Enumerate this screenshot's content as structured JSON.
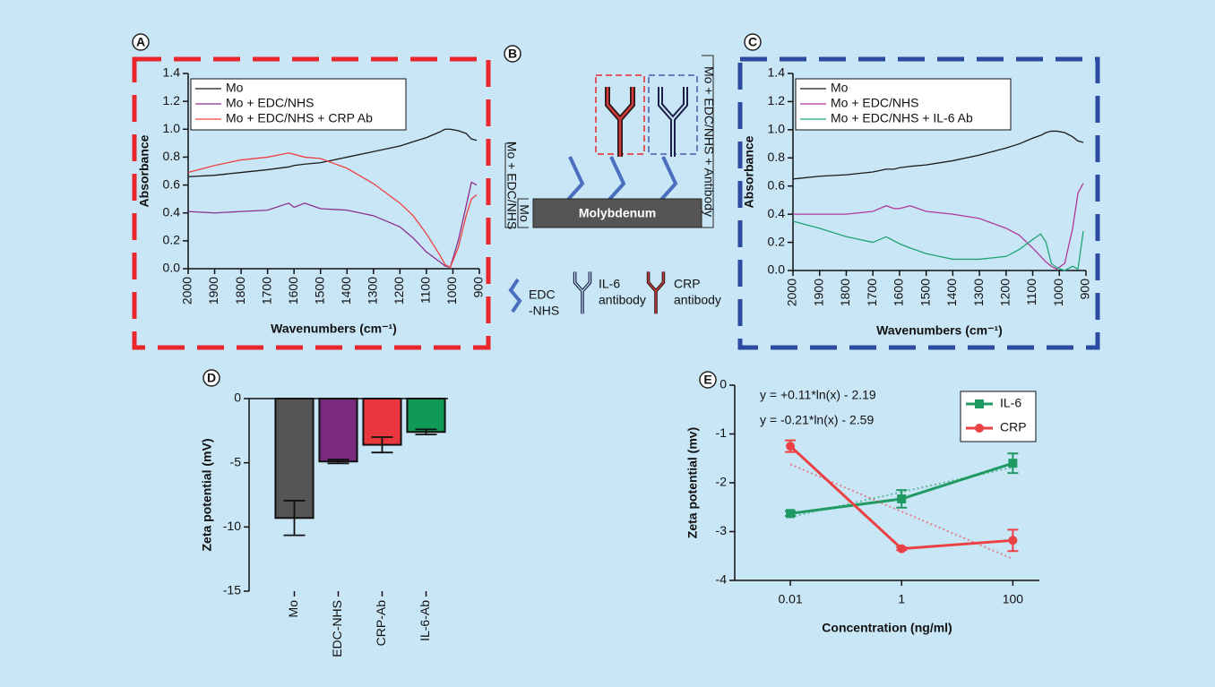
{
  "chart_data": [
    {
      "panel": "A",
      "type": "line",
      "xlabel": "Wavenumbers (cm⁻¹)",
      "ylabel": "Absorbance",
      "x": [
        2000,
        1900,
        1800,
        1700,
        1620,
        1600,
        1560,
        1500,
        1400,
        1300,
        1200,
        1150,
        1100,
        1050,
        1030,
        1010,
        980,
        950,
        930,
        910
      ],
      "xlim": [
        2000,
        900
      ],
      "xticks": [
        2000,
        1900,
        1800,
        1700,
        1600,
        1500,
        1400,
        1300,
        1200,
        1100,
        1000,
        900
      ],
      "ylim": [
        0,
        1.4
      ],
      "yticks": [
        {
          "value": 0,
          "label": "0.0"
        },
        0.2,
        0.4,
        0.6,
        0.8,
        {
          "value": 1,
          "label": "1.0"
        },
        1.2,
        1.4
      ],
      "frame_color": "#e8262b",
      "legend": "upper left",
      "series": [
        {
          "name": "Mo",
          "color": "#1a1a1a",
          "values": [
            0.66,
            0.67,
            0.69,
            0.71,
            0.73,
            0.74,
            0.75,
            0.76,
            0.8,
            0.84,
            0.88,
            0.91,
            0.94,
            0.98,
            1.0,
            1.0,
            0.99,
            0.97,
            0.93,
            0.92
          ]
        },
        {
          "name": "Mo + EDC/NHS",
          "color": "#8b2f8e",
          "values": [
            0.41,
            0.4,
            0.41,
            0.42,
            0.47,
            0.44,
            0.47,
            0.43,
            0.42,
            0.38,
            0.3,
            0.22,
            0.12,
            0.05,
            0.02,
            0.01,
            0.2,
            0.45,
            0.62,
            0.6
          ]
        },
        {
          "name": "Mo + EDC/NHS + CRP Ab",
          "color": "#ef4040",
          "values": [
            0.69,
            0.74,
            0.78,
            0.8,
            0.83,
            0.82,
            0.8,
            0.79,
            0.72,
            0.61,
            0.47,
            0.38,
            0.25,
            0.1,
            0.03,
            0.01,
            0.15,
            0.38,
            0.5,
            0.53
          ]
        }
      ]
    },
    {
      "panel": "C",
      "type": "line",
      "xlabel": "Wavenumbers (cm⁻¹)",
      "ylabel": "Absorbance",
      "x": [
        2000,
        1900,
        1800,
        1700,
        1650,
        1620,
        1600,
        1560,
        1500,
        1400,
        1300,
        1200,
        1150,
        1100,
        1070,
        1050,
        1030,
        1010,
        980,
        950,
        930,
        910
      ],
      "xlim": [
        2000,
        900
      ],
      "xticks": [
        2000,
        1900,
        1800,
        1700,
        1600,
        1500,
        1400,
        1300,
        1200,
        1100,
        1000,
        900
      ],
      "ylim": [
        0,
        1.4
      ],
      "yticks": [
        {
          "value": 0,
          "label": "0.0"
        },
        0.2,
        0.4,
        0.6,
        0.8,
        {
          "value": 1,
          "label": "1.0"
        },
        1.2,
        1.4
      ],
      "frame_color": "#2b4aa0",
      "legend": "upper left",
      "series": [
        {
          "name": "Mo",
          "color": "#1a1a1a",
          "values": [
            0.65,
            0.67,
            0.68,
            0.7,
            0.72,
            0.72,
            0.73,
            0.74,
            0.75,
            0.78,
            0.82,
            0.87,
            0.9,
            0.94,
            0.96,
            0.98,
            0.99,
            0.99,
            0.98,
            0.95,
            0.92,
            0.91
          ]
        },
        {
          "name": "Mo + EDC/NHS",
          "color": "#b0399a",
          "values": [
            0.4,
            0.4,
            0.4,
            0.42,
            0.46,
            0.44,
            0.44,
            0.46,
            0.42,
            0.4,
            0.37,
            0.3,
            0.25,
            0.16,
            0.1,
            0.06,
            0.03,
            0.01,
            0.05,
            0.3,
            0.55,
            0.62
          ]
        },
        {
          "name": "Mo + EDC/NHS + IL-6 Ab",
          "color": "#1fa374",
          "values": [
            0.35,
            0.3,
            0.24,
            0.2,
            0.24,
            0.21,
            0.19,
            0.16,
            0.12,
            0.08,
            0.08,
            0.1,
            0.15,
            0.22,
            0.26,
            0.2,
            0.05,
            0.02,
            0.0,
            0.03,
            0.01,
            0.28
          ]
        }
      ]
    },
    {
      "panel": "D",
      "type": "bar",
      "ylabel": "Zeta potential (mV)",
      "categories": [
        "Mo",
        "EDC-NHS",
        "CRP-Ab",
        "IL-6-Ab"
      ],
      "values": [
        -9.3,
        -4.9,
        -3.6,
        -2.6
      ],
      "errors": [
        1.35,
        0.15,
        0.6,
        0.2
      ],
      "colors": [
        "#555555",
        "#7a2a7c",
        "#e8383d",
        "#0f9a55"
      ],
      "ylim": [
        -15,
        0
      ],
      "yticks": [
        -15,
        -10,
        -5,
        0
      ]
    },
    {
      "panel": "E",
      "type": "errorline",
      "xlabel": "Concentration (ng/ml)",
      "ylabel": "Zeta potential (mv)",
      "log_x": true,
      "x": [
        0.01,
        1,
        100
      ],
      "xlim": [
        0.001,
        300
      ],
      "xticks": [
        0.01,
        1,
        100
      ],
      "ylim": [
        -4,
        0
      ],
      "yticks": [
        0,
        -1,
        -2,
        -3,
        -4
      ],
      "legend": "upper right",
      "annotations": [
        "y = +0.11*ln(x) - 2.19",
        "y = -0.21*ln(x) - 2.59"
      ],
      "series": [
        {
          "name": "IL-6",
          "color": "#1f9a62",
          "marker": "square",
          "values": [
            -2.63,
            -2.33,
            -1.6
          ],
          "errors": [
            0.05,
            0.18,
            0.2
          ],
          "trend_values": [
            -2.7,
            -2.19,
            -1.68
          ]
        },
        {
          "name": "CRP",
          "color": "#ea4145",
          "marker": "circle",
          "values": [
            -1.25,
            -3.35,
            -3.18
          ],
          "errors": [
            0.12,
            0.03,
            0.22
          ],
          "trend_values": [
            -1.62,
            -2.59,
            -3.56
          ]
        }
      ]
    }
  ],
  "diagram": {
    "panel": "B",
    "substrate": "Molybdenum",
    "layer_labels": [
      "Mo",
      "Mo + EDC/NHS",
      "Mo + EDC/NHS + Antibody"
    ],
    "legend": [
      [
        "EDC",
        "-NHS"
      ],
      [
        "IL-6",
        "antibody"
      ],
      [
        "CRP",
        "antibody"
      ]
    ]
  }
}
